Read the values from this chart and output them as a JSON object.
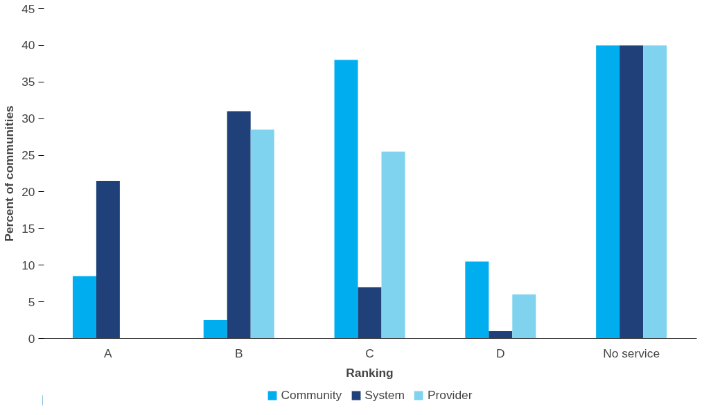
{
  "chart_data": {
    "type": "bar",
    "xlabel": "Ranking",
    "ylabel": "Percent of communities",
    "categories": [
      "A",
      "B",
      "C",
      "D",
      "No service"
    ],
    "series": [
      {
        "name": "Community",
        "color": "#00aeef",
        "values": [
          8.5,
          2.5,
          38,
          10.5,
          40
        ]
      },
      {
        "name": "System",
        "color": "#1f4079",
        "values": [
          21.5,
          31,
          7,
          1,
          40
        ]
      },
      {
        "name": "Provider",
        "color": "#7fd3ef",
        "values": [
          0,
          28.5,
          25.5,
          6,
          40
        ]
      }
    ],
    "ylim": [
      0,
      45
    ],
    "yticks": [
      0,
      5,
      10,
      15,
      20,
      25,
      30,
      35,
      40,
      45
    ],
    "grid": false,
    "legend": "bottom"
  }
}
